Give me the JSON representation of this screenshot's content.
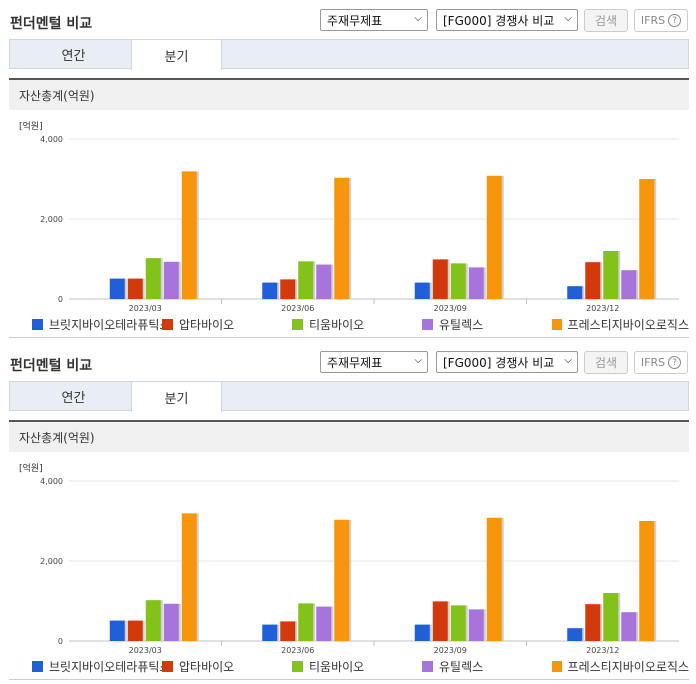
{
  "panels": [
    {
      "title": "펀더멘털 비교",
      "statement_select": "주재무제표",
      "peer_select": "[FG000] 경쟁사 비교",
      "search_label": "검색",
      "ifrs_label": "IFRS",
      "help_glyph": "?",
      "tabs": [
        {
          "label": "연간",
          "active": false
        },
        {
          "label": "분기",
          "active": true
        }
      ],
      "chart_header": "자산총계(억원)"
    },
    {
      "title": "펀더멘털 비교",
      "statement_select": "주재무제표",
      "peer_select": "[FG000] 경쟁사 비교",
      "search_label": "검색",
      "ifrs_label": "IFRS",
      "help_glyph": "?",
      "tabs": [
        {
          "label": "연간",
          "active": false
        },
        {
          "label": "분기",
          "active": true
        }
      ],
      "chart_header": "자산총계(억원)"
    }
  ],
  "chart_data": [
    {
      "type": "bar",
      "unit_label": "[억원]",
      "categories": [
        "2023/03",
        "2023/06",
        "2023/09",
        "2023/12"
      ],
      "ylim": [
        0,
        4000
      ],
      "yticks": [
        0,
        2000,
        4000
      ],
      "ytick_labels": [
        "0",
        "2,000",
        "4,000"
      ],
      "grid": true,
      "legend_position": "bottom",
      "series": [
        {
          "name": "브릿지바이오테라퓨틱스",
          "color": "#1f5fd8",
          "values": [
            510,
            410,
            410,
            320
          ]
        },
        {
          "name": "압타바이오",
          "color": "#d23a0e",
          "values": [
            510,
            490,
            990,
            920
          ]
        },
        {
          "name": "티움바이오",
          "color": "#82c21a",
          "values": [
            1020,
            940,
            890,
            1200
          ]
        },
        {
          "name": "유틸렉스",
          "color": "#a774dc",
          "values": [
            930,
            860,
            790,
            720
          ]
        },
        {
          "name": "프레스티지바이오로직스",
          "color": "#f7960a",
          "values": [
            3190,
            3030,
            3080,
            3000
          ]
        }
      ]
    },
    {
      "type": "bar",
      "unit_label": "[억원]",
      "categories": [
        "2023/03",
        "2023/06",
        "2023/09",
        "2023/12"
      ],
      "ylim": [
        0,
        4000
      ],
      "yticks": [
        0,
        2000,
        4000
      ],
      "ytick_labels": [
        "0",
        "2,000",
        "4,000"
      ],
      "grid": true,
      "legend_position": "bottom",
      "series": [
        {
          "name": "브릿지바이오테라퓨틱스",
          "color": "#1f5fd8",
          "values": [
            510,
            410,
            410,
            320
          ]
        },
        {
          "name": "압타바이오",
          "color": "#d23a0e",
          "values": [
            510,
            490,
            990,
            920
          ]
        },
        {
          "name": "티움바이오",
          "color": "#82c21a",
          "values": [
            1020,
            940,
            890,
            1200
          ]
        },
        {
          "name": "유틸렉스",
          "color": "#a774dc",
          "values": [
            930,
            860,
            790,
            720
          ]
        },
        {
          "name": "프레스티지바이오로직스",
          "color": "#f7960a",
          "values": [
            3190,
            3030,
            3080,
            3000
          ]
        }
      ]
    }
  ]
}
